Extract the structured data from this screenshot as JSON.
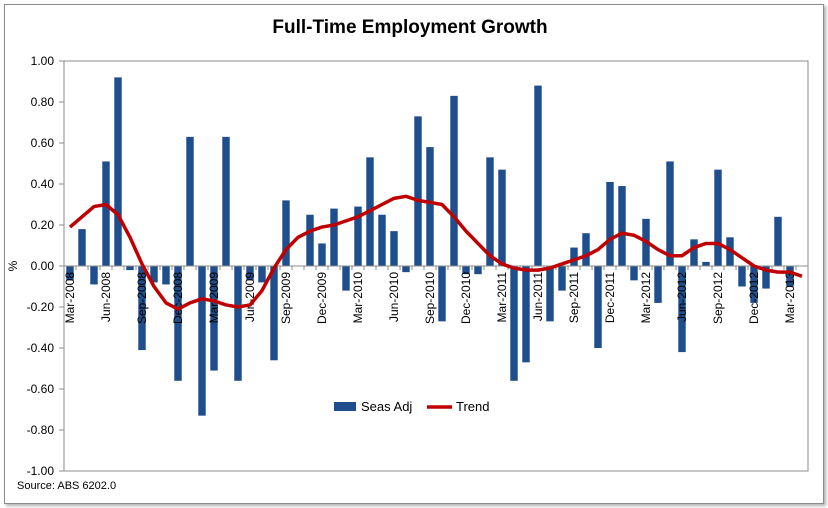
{
  "chart_data": {
    "type": "bar",
    "title": "Full-Time Employment Growth",
    "ylabel": "%",
    "xlabel": "",
    "ylim": [
      -1.0,
      1.0
    ],
    "yticks": [
      "1.00",
      "0.80",
      "0.60",
      "0.40",
      "0.20",
      "0.00",
      "-0.20",
      "-0.40",
      "-0.60",
      "-0.80",
      "-1.00"
    ],
    "ytick_values": [
      1.0,
      0.8,
      0.6,
      0.4,
      0.2,
      0.0,
      -0.2,
      -0.4,
      -0.6,
      -0.8,
      -1.0
    ],
    "xtick_labels": [
      "Mar-2008",
      "Jun-2008",
      "Sep-2008",
      "Dec-2008",
      "Mar-2009",
      "Jun-2009",
      "Sep-2009",
      "Dec-2009",
      "Mar-2010",
      "Jun-2010",
      "Sep-2010",
      "Dec-2010",
      "Mar-2011",
      "Jun-2011",
      "Sep-2011",
      "Dec-2011",
      "Mar-2012",
      "Jun-2012",
      "Sep-2012",
      "Dec-2012",
      "Mar-2013"
    ],
    "xtick_every": 3,
    "categories_count": 62,
    "series": [
      {
        "name": "Seas Adj",
        "type": "bar",
        "color": "#1f4e8c",
        "values": [
          -0.07,
          0.18,
          -0.09,
          0.51,
          0.92,
          -0.02,
          -0.41,
          -0.08,
          -0.09,
          -0.56,
          0.63,
          -0.73,
          -0.51,
          0.63,
          -0.56,
          -0.07,
          -0.08,
          -0.46,
          0.32,
          0.0,
          0.25,
          0.11,
          0.28,
          -0.12,
          0.29,
          0.53,
          0.25,
          0.17,
          -0.03,
          0.73,
          0.58,
          -0.27,
          0.83,
          -0.04,
          -0.04,
          0.53,
          0.47,
          -0.56,
          -0.47,
          0.88,
          -0.27,
          -0.12,
          0.09,
          0.16,
          -0.4,
          0.41,
          0.39,
          -0.07,
          0.23,
          -0.18,
          0.51,
          -0.42,
          0.13,
          0.02,
          0.47,
          0.14,
          -0.1,
          -0.18,
          -0.11,
          0.24,
          -0.1,
          0.0
        ]
      },
      {
        "name": "Trend",
        "type": "line",
        "color": "#c00000",
        "values": [
          0.19,
          0.24,
          0.29,
          0.3,
          0.25,
          0.14,
          0.01,
          -0.1,
          -0.18,
          -0.21,
          -0.18,
          -0.16,
          -0.17,
          -0.19,
          -0.2,
          -0.19,
          -0.12,
          -0.01,
          0.08,
          0.14,
          0.17,
          0.19,
          0.2,
          0.22,
          0.24,
          0.27,
          0.3,
          0.33,
          0.34,
          0.32,
          0.31,
          0.3,
          0.24,
          0.17,
          0.11,
          0.05,
          0.01,
          -0.01,
          -0.02,
          -0.02,
          -0.01,
          0.01,
          0.03,
          0.05,
          0.08,
          0.13,
          0.16,
          0.15,
          0.12,
          0.08,
          0.05,
          0.05,
          0.09,
          0.11,
          0.11,
          0.08,
          0.04,
          0.0,
          -0.02,
          -0.03,
          -0.03,
          -0.05
        ]
      }
    ],
    "legend": {
      "position": "bottom-center",
      "entries": [
        "Seas Adj",
        "Trend"
      ]
    },
    "grid": false,
    "source": "Source: ABS 6202.0"
  }
}
